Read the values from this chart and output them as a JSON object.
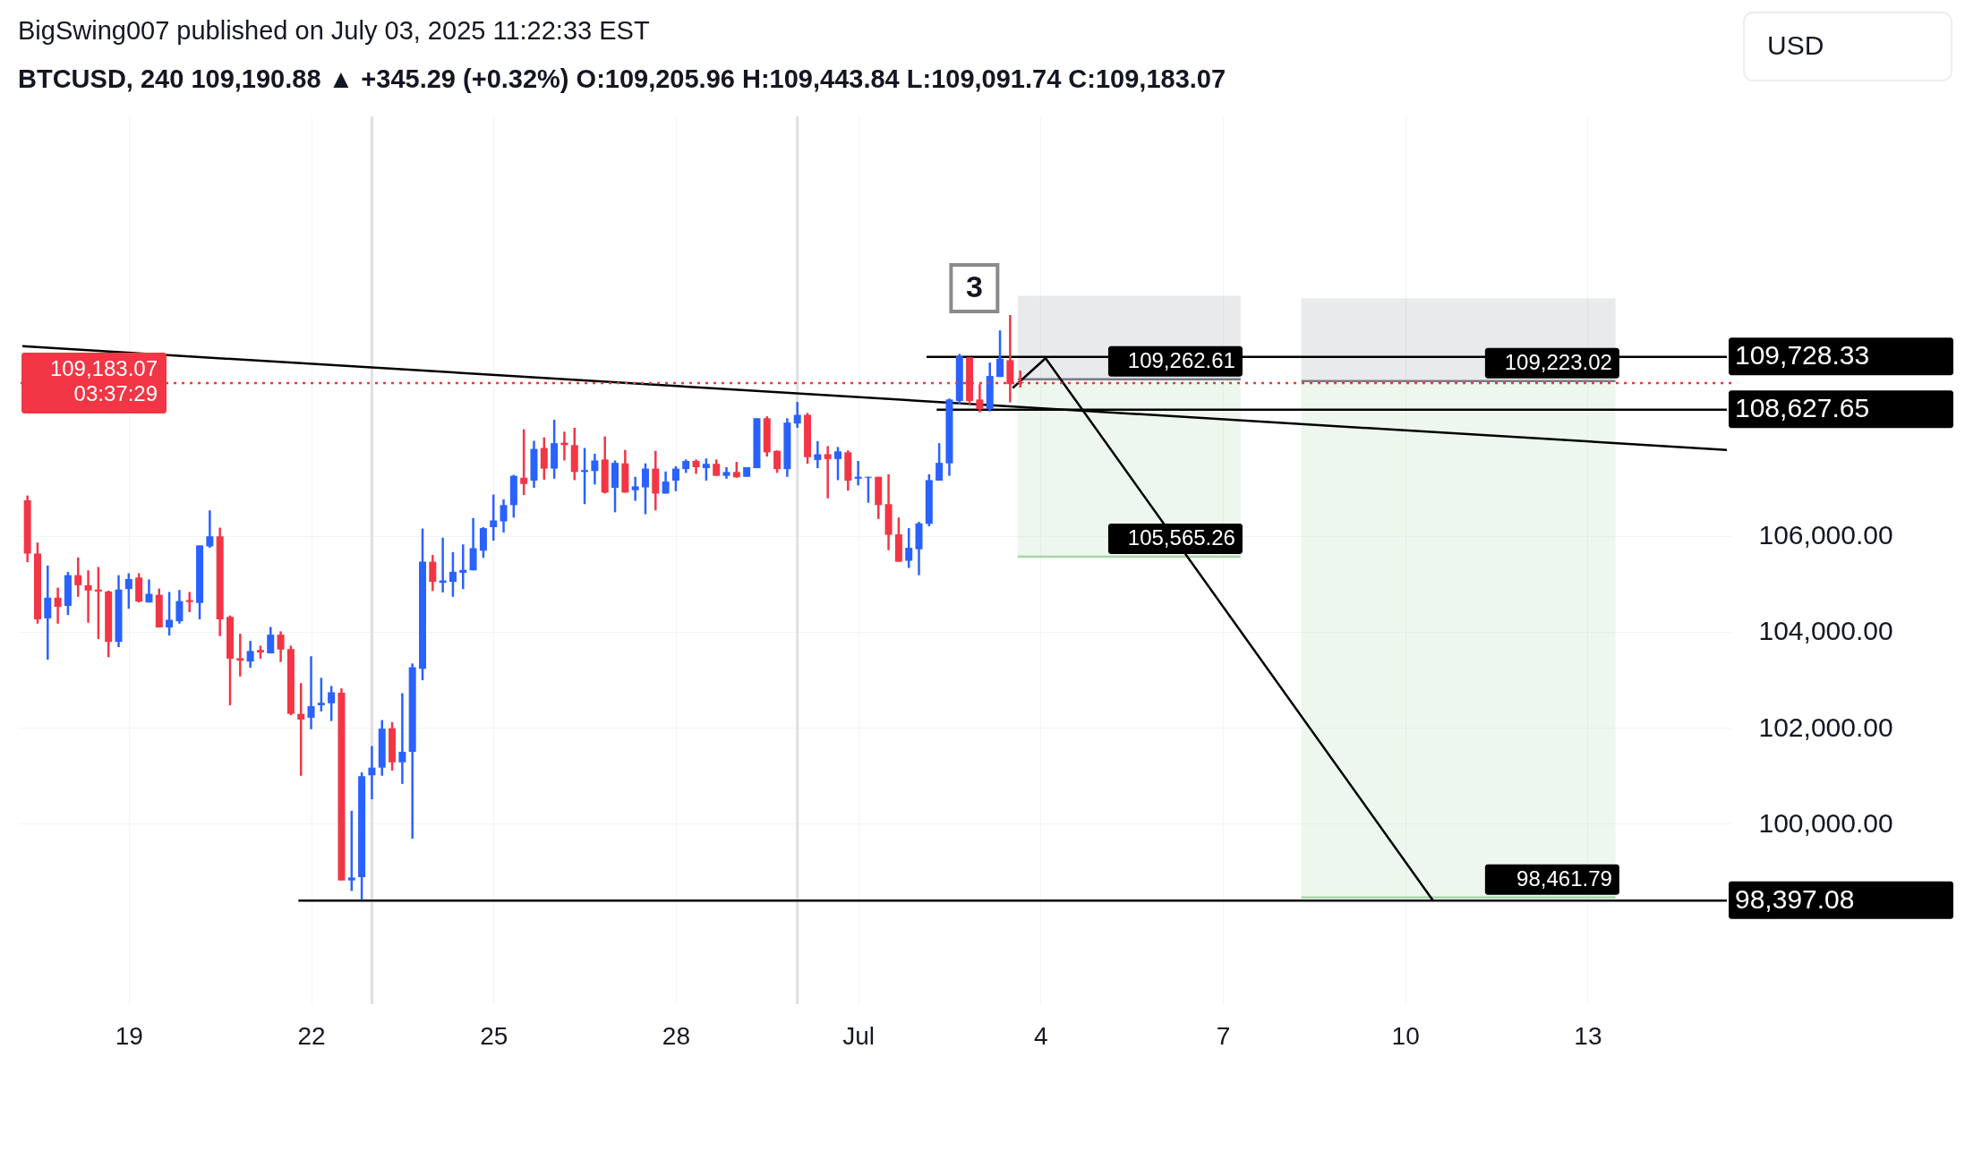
{
  "chart_data": {
    "type": "candlestick",
    "title": "BigSwing007 published on July 03, 2025 11:22:33 EST",
    "subtitle": "BTCUSD, 240  109,190.88 ▲ +345.29 (+0.32%)  O:109,205.96  H:109,443.84  L:109,091.74  C:109,183.07",
    "x": [
      "2025-06-17T08:00",
      "2025-06-17T12:00",
      "2025-06-17T16:00",
      "2025-06-17T20:00",
      "2025-06-18T00:00",
      "2025-06-18T04:00",
      "2025-06-18T08:00",
      "2025-06-18T12:00",
      "2025-06-18T16:00",
      "2025-06-18T20:00",
      "2025-06-19T00:00",
      "2025-06-19T04:00",
      "2025-06-19T08:00",
      "2025-06-19T12:00",
      "2025-06-19T16:00",
      "2025-06-19T20:00",
      "2025-06-20T00:00",
      "2025-06-20T04:00",
      "2025-06-20T08:00",
      "2025-06-20T12:00",
      "2025-06-20T16:00",
      "2025-06-20T20:00",
      "2025-06-21T00:00",
      "2025-06-21T04:00",
      "2025-06-21T08:00",
      "2025-06-21T12:00",
      "2025-06-21T16:00",
      "2025-06-21T20:00",
      "2025-06-22T00:00",
      "2025-06-22T04:00",
      "2025-06-22T08:00",
      "2025-06-22T12:00",
      "2025-06-22T16:00",
      "2025-06-22T20:00",
      "2025-06-23T00:00",
      "2025-06-23T04:00",
      "2025-06-23T08:00",
      "2025-06-23T12:00",
      "2025-06-23T16:00",
      "2025-06-23T20:00",
      "2025-06-24T00:00",
      "2025-06-24T04:00",
      "2025-06-24T08:00",
      "2025-06-24T12:00",
      "2025-06-24T16:00",
      "2025-06-24T20:00",
      "2025-06-25T00:00",
      "2025-06-25T04:00",
      "2025-06-25T08:00",
      "2025-06-25T12:00",
      "2025-06-25T16:00",
      "2025-06-25T20:00",
      "2025-06-26T00:00",
      "2025-06-26T04:00",
      "2025-06-26T08:00",
      "2025-06-26T12:00",
      "2025-06-26T16:00",
      "2025-06-26T20:00",
      "2025-06-27T00:00",
      "2025-06-27T04:00",
      "2025-06-27T08:00",
      "2025-06-27T12:00",
      "2025-06-27T16:00",
      "2025-06-27T20:00",
      "2025-06-28T00:00",
      "2025-06-28T04:00",
      "2025-06-28T08:00",
      "2025-06-28T12:00",
      "2025-06-28T16:00",
      "2025-06-28T20:00",
      "2025-06-29T00:00",
      "2025-06-29T04:00",
      "2025-06-29T08:00",
      "2025-06-29T12:00",
      "2025-06-29T16:00",
      "2025-06-29T20:00",
      "2025-06-30T00:00",
      "2025-06-30T04:00",
      "2025-06-30T08:00",
      "2025-06-30T12:00",
      "2025-06-30T16:00",
      "2025-06-30T20:00",
      "2025-07-01T00:00",
      "2025-07-01T04:00",
      "2025-07-01T08:00",
      "2025-07-01T12:00",
      "2025-07-01T16:00",
      "2025-07-01T20:00",
      "2025-07-02T00:00",
      "2025-07-02T04:00",
      "2025-07-02T08:00",
      "2025-07-02T12:00",
      "2025-07-02T16:00",
      "2025-07-02T20:00",
      "2025-07-03T00:00",
      "2025-07-03T04:00",
      "2025-07-03T08:00",
      "2025-07-03T12:00",
      "2025-07-03T16:00"
    ],
    "ohlc": [
      [
        106740,
        106840,
        105450,
        105630
      ],
      [
        105630,
        105860,
        104170,
        104260
      ],
      [
        104280,
        105380,
        103420,
        104710
      ],
      [
        104710,
        104920,
        104170,
        104520
      ],
      [
        104540,
        105250,
        104350,
        105180
      ],
      [
        105180,
        105550,
        104730,
        104970
      ],
      [
        104970,
        105280,
        104190,
        104860
      ],
      [
        104880,
        105350,
        103850,
        104840
      ],
      [
        104840,
        104860,
        103470,
        103790
      ],
      [
        103790,
        105180,
        103680,
        104880
      ],
      [
        104890,
        105220,
        104480,
        105100
      ],
      [
        105130,
        105220,
        104610,
        104630
      ],
      [
        104610,
        105090,
        104610,
        104790
      ],
      [
        104770,
        104900,
        104090,
        104090
      ],
      [
        104090,
        104830,
        103920,
        104250
      ],
      [
        104220,
        104870,
        104170,
        104640
      ],
      [
        104660,
        104830,
        104410,
        104620
      ],
      [
        104600,
        105800,
        104260,
        105800
      ],
      [
        105780,
        106530,
        105750,
        105990
      ],
      [
        105990,
        106170,
        103910,
        104260
      ],
      [
        104310,
        104340,
        102470,
        103440
      ],
      [
        103450,
        103960,
        103070,
        103400
      ],
      [
        103380,
        103810,
        103250,
        103600
      ],
      [
        103620,
        103710,
        103440,
        103570
      ],
      [
        103550,
        104100,
        103550,
        103940
      ],
      [
        103940,
        104010,
        103370,
        103630
      ],
      [
        103640,
        103710,
        102260,
        102290
      ],
      [
        102290,
        102930,
        101000,
        102170
      ],
      [
        102210,
        103490,
        101970,
        102450
      ],
      [
        102470,
        103040,
        102340,
        102520
      ],
      [
        102510,
        102870,
        102140,
        102740
      ],
      [
        102730,
        102820,
        98820,
        98820
      ],
      [
        98820,
        100270,
        98600,
        98880
      ],
      [
        98890,
        101070,
        98410,
        100990
      ],
      [
        101010,
        101620,
        100510,
        101170
      ],
      [
        101170,
        102160,
        101000,
        101980
      ],
      [
        101990,
        102120,
        101110,
        101280
      ],
      [
        101280,
        102720,
        100830,
        101500
      ],
      [
        101500,
        103340,
        99690,
        103260
      ],
      [
        103230,
        106150,
        102990,
        105460
      ],
      [
        105460,
        105600,
        104850,
        105040
      ],
      [
        105020,
        105960,
        104820,
        105070
      ],
      [
        105040,
        105660,
        104730,
        105250
      ],
      [
        105230,
        105820,
        104890,
        105290
      ],
      [
        105280,
        106370,
        105280,
        105740
      ],
      [
        105690,
        106180,
        105540,
        106160
      ],
      [
        106180,
        106860,
        105900,
        106320
      ],
      [
        106300,
        106760,
        106070,
        106640
      ],
      [
        106640,
        107270,
        106380,
        107250
      ],
      [
        107210,
        108220,
        106850,
        107080
      ],
      [
        107150,
        107980,
        107000,
        107810
      ],
      [
        107830,
        108050,
        107170,
        107400
      ],
      [
        107400,
        108420,
        107190,
        107930
      ],
      [
        107940,
        108170,
        107570,
        107890
      ],
      [
        107890,
        108250,
        107160,
        107330
      ],
      [
        107330,
        107830,
        106660,
        107370
      ],
      [
        107350,
        107710,
        107070,
        107570
      ],
      [
        107590,
        108070,
        106880,
        106900
      ],
      [
        107000,
        107570,
        106490,
        107520
      ],
      [
        107510,
        107790,
        106900,
        106900
      ],
      [
        106950,
        107230,
        106730,
        107030
      ],
      [
        107010,
        107510,
        106450,
        107400
      ],
      [
        107400,
        107770,
        106530,
        106880
      ],
      [
        106880,
        107340,
        106880,
        107130
      ],
      [
        107150,
        107450,
        106930,
        107400
      ],
      [
        107390,
        107590,
        107310,
        107560
      ],
      [
        107560,
        107590,
        107290,
        107430
      ],
      [
        107410,
        107610,
        107150,
        107500
      ],
      [
        107500,
        107590,
        107250,
        107250
      ],
      [
        107250,
        107430,
        107190,
        107330
      ],
      [
        107330,
        107540,
        107210,
        107220
      ],
      [
        107230,
        107430,
        107230,
        107430
      ],
      [
        107410,
        108450,
        107410,
        108450
      ],
      [
        108450,
        108490,
        107650,
        107740
      ],
      [
        107770,
        107780,
        107310,
        107390
      ],
      [
        107390,
        108450,
        107230,
        108360
      ],
      [
        108340,
        108790,
        108250,
        108520
      ],
      [
        108520,
        108560,
        107500,
        107640
      ],
      [
        107580,
        107970,
        107410,
        107700
      ],
      [
        107700,
        107870,
        106780,
        107600
      ],
      [
        107600,
        107850,
        107160,
        107760
      ],
      [
        107740,
        107780,
        106940,
        107150
      ],
      [
        107190,
        107560,
        107050,
        107230
      ],
      [
        107210,
        107230,
        106690,
        107230
      ],
      [
        107230,
        107230,
        106350,
        106640
      ],
      [
        106660,
        107280,
        105700,
        106020
      ],
      [
        106030,
        106380,
        105460,
        105460
      ],
      [
        105480,
        106160,
        105330,
        105750
      ],
      [
        105720,
        106290,
        105180,
        106260
      ],
      [
        106250,
        107280,
        106200,
        107160
      ],
      [
        107150,
        107930,
        107150,
        107520
      ],
      [
        107510,
        108860,
        107250,
        108840
      ],
      [
        108810,
        109790,
        108740,
        109740
      ],
      [
        109720,
        109720,
        108740,
        108810
      ],
      [
        108840,
        109160,
        108570,
        108640
      ],
      [
        108640,
        109610,
        108590,
        109330
      ],
      [
        109310,
        110280,
        109310,
        109690
      ],
      [
        109660,
        110600,
        108780,
        109160
      ],
      [
        109205.96,
        109443.84,
        109091.74,
        109183.07
      ]
    ],
    "series": [
      {
        "type": "line",
        "color": "#787b86",
        "x": [
          "2025-07-03T15:00",
          "2025-07-07T07:00"
        ],
        "values": [
          109262.61,
          109262.61
        ],
        "upper": [
          111000,
          111000
        ],
        "lower": [
          109262.61,
          109262.61
        ]
      },
      {
        "type": "line",
        "color": "#a5d6a7",
        "x": [
          "2025-07-03T15:00",
          "2025-07-07T07:00"
        ],
        "values": [
          105565.26,
          105565.26
        ],
        "upper": [
          109262.61,
          109262.61
        ],
        "lower": [
          105565.26,
          105565.26
        ]
      },
      {
        "type": "line",
        "color": "#787b86",
        "x": [
          "2025-07-08T07:00",
          "2025-07-13T11:00"
        ],
        "values": [
          109223.02,
          109223.02
        ],
        "upper": [
          110950,
          110950
        ],
        "lower": [
          109223.02,
          109223.02
        ]
      },
      {
        "type": "line",
        "color": "#a5d6a7",
        "x": [
          "2025-07-08T07:00",
          "2025-07-13T11:00"
        ],
        "values": [
          98461.79,
          98461.79
        ],
        "upper": [
          109223.02,
          109223.02
        ],
        "lower": [
          98461.79,
          98461.79
        ]
      },
      {
        "type": "line",
        "color": "#000000",
        "x": [
          "2025-06-17T06:00",
          "2025-07-15T07:00"
        ],
        "values": [
          109950,
          107790
        ]
      },
      {
        "type": "line",
        "color": "#000000",
        "x": [
          "2025-07-02T03:00",
          "2025-07-15T07:00"
        ],
        "values": [
          109728.33,
          109728.33
        ]
      },
      {
        "type": "line",
        "color": "#000000",
        "x": [
          "2025-07-02T07:00",
          "2025-07-15T07:00"
        ],
        "values": [
          108627.65,
          108627.65
        ]
      },
      {
        "type": "line",
        "color": "#000000",
        "x": [
          "2025-06-21T19:00",
          "2025-07-15T07:00"
        ],
        "values": [
          98397.08,
          98397.08
        ]
      },
      {
        "type": "line",
        "color": "#000000",
        "x": [
          "2025-07-03T13:00",
          "2025-07-04T02:00",
          "2025-07-10T11:00"
        ],
        "values": [
          109080,
          109700,
          98400
        ]
      }
    ],
    "xlim": [
      "2025-06-17T06:00",
      "2025-07-15T07:00"
    ],
    "xticks": [
      {
        "value": "2025-06-19",
        "label": "19"
      },
      {
        "value": "2025-06-22",
        "label": "22"
      },
      {
        "value": "2025-06-25",
        "label": "25"
      },
      {
        "value": "2025-06-28",
        "label": "28"
      },
      {
        "value": "2025-07-01",
        "label": "Jul"
      },
      {
        "value": "2025-07-04",
        "label": "4"
      },
      {
        "value": "2025-07-07",
        "label": "7"
      },
      {
        "value": "2025-07-10",
        "label": "10"
      },
      {
        "value": "2025-07-13",
        "label": "13"
      }
    ],
    "ylim": [
      96240,
      114740
    ],
    "yticks": [
      {
        "value": 100000,
        "label": "100,000.00"
      },
      {
        "value": 102000,
        "label": "102,000.00"
      },
      {
        "value": 104000,
        "label": "104,000.00"
      },
      {
        "value": 106000,
        "label": "106,000.00"
      }
    ],
    "grid": true,
    "ref_lines": [
      {
        "axis": "x",
        "value": "2025-06-23",
        "color": "#e0e0e0"
      },
      {
        "axis": "x",
        "value": "2025-06-30",
        "color": "#e0e0e0"
      },
      {
        "axis": "y",
        "value": 109183.07,
        "label": "109,183.07\n03:37:29",
        "color": "#f23645",
        "line_style": "dotted"
      }
    ],
    "annotations": [
      "USD",
      "3",
      {
        "text": "109,728.33",
        "x": "2025-07-15T07:00",
        "y": 109728.33
      },
      {
        "text": "109,262.61",
        "x": "2025-07-07T07:00",
        "y": 109262.61
      },
      {
        "text": "109,223.02",
        "x": "2025-07-13T11:00",
        "y": 109223.02
      },
      {
        "text": "108,627.65",
        "x": "2025-07-15T07:00",
        "y": 108627.65
      },
      {
        "text": "105,565.26",
        "x": "2025-07-07T07:00",
        "y": 105565.26
      },
      {
        "text": "98,461.79",
        "x": "2025-07-13T11:00",
        "y": 98461.79
      },
      {
        "text": "98,397.08",
        "x": "2025-07-15T07:00",
        "y": 98397.08
      }
    ]
  }
}
